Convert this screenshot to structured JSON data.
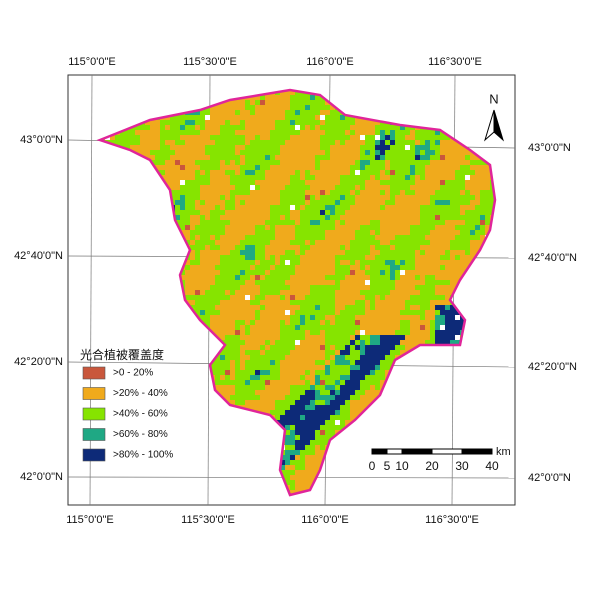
{
  "map": {
    "top_labels": [
      "115°0'0\"E",
      "115°30'0\"E",
      "116°0'0\"E",
      "116°30'0\"E"
    ],
    "bottom_labels": [
      "115°0'0\"E",
      "115°30'0\"E",
      "116°0'0\"E",
      "116°30'0\"E"
    ],
    "left_labels": [
      "43°0'0\"N",
      "42°40'0\"N",
      "42°20'0\"N",
      "42°0'0\"N"
    ],
    "right_labels": [
      "43°0'0\"N",
      "42°40'0\"N",
      "42°20'0\"N",
      "42°0'0\"N"
    ],
    "north": "N",
    "legend": {
      "title": "光合植被覆盖度",
      "items": [
        {
          "label": ">0 - 20%",
          "color": "#c9573c"
        },
        {
          "label": ">20% - 40%",
          "color": "#f0aa1c"
        },
        {
          "label": ">40% - 60%",
          "color": "#86e400"
        },
        {
          "label": ">60% - 80%",
          "color": "#1fa884"
        },
        {
          "label": ">80% - 100%",
          "color": "#0d2a78"
        }
      ]
    },
    "scale_bar": {
      "labels": [
        0,
        5,
        10,
        20,
        30,
        40
      ],
      "unit": "km"
    }
  }
}
